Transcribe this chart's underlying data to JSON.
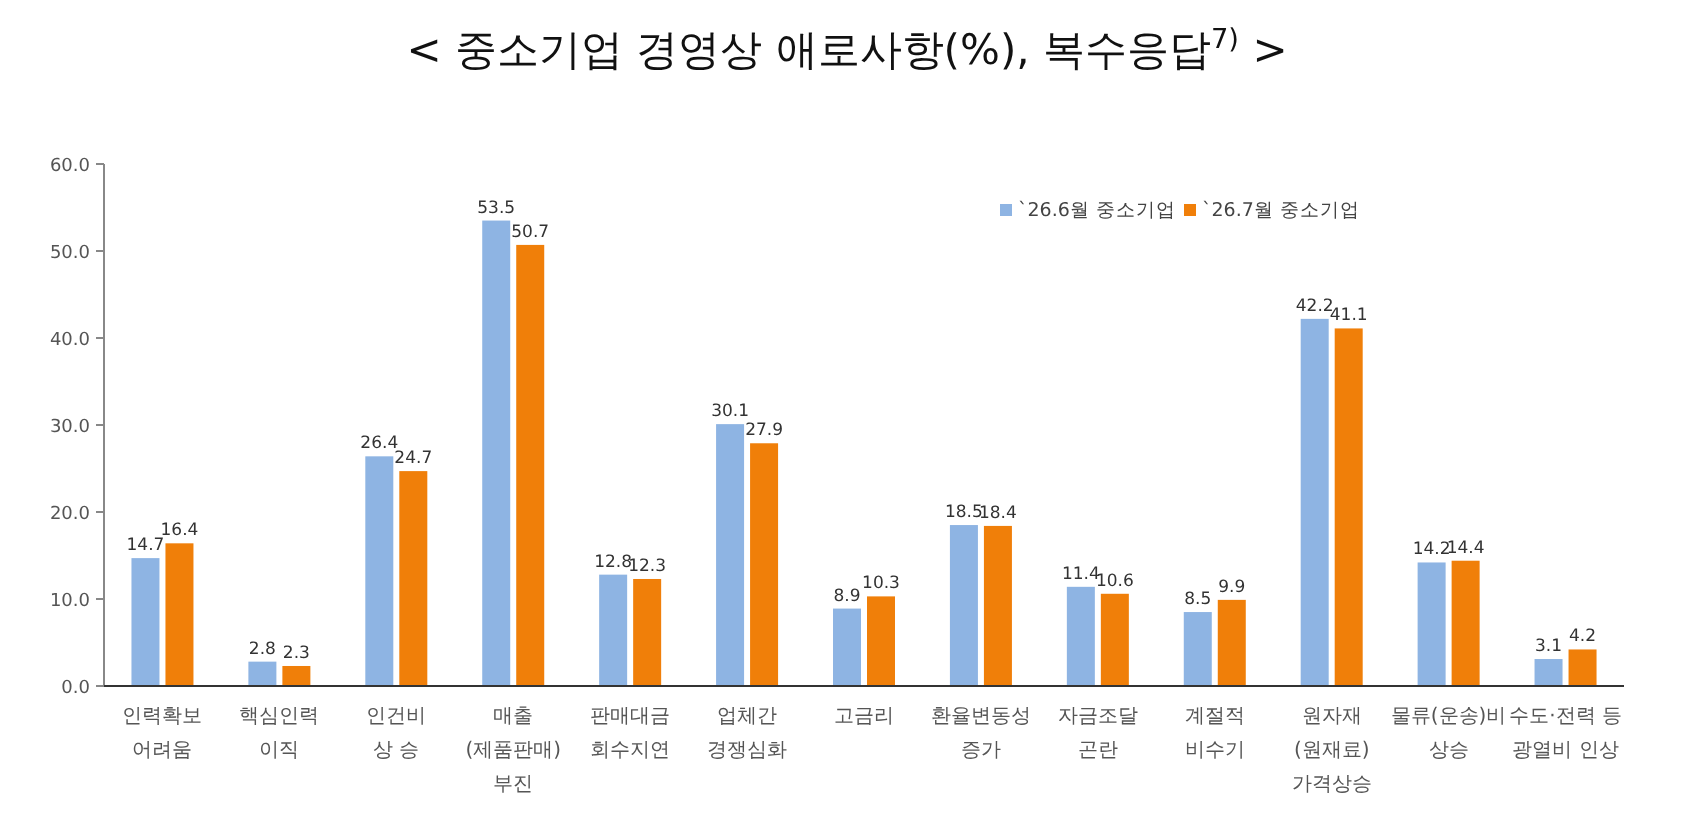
{
  "chart_data": {
    "type": "bar",
    "title": "< 중소기업 경영상 애로사항(%), 복수응답$^{7)}$ >",
    "categories": [
      "인력확보\n어려움",
      "핵심인력\n이직",
      "인건비\n상 승",
      "매출\n(제품판매)\n부진",
      "판매대금\n회수지연",
      "업체간\n경쟁심화",
      "고금리",
      "환율변동성\n증가",
      "자금조달\n곤란",
      "계절적\n비수기",
      "원자재\n(원재료)\n가격상승",
      "물류(운송)비\n상승",
      "수도·전력 등\n광열비 인상"
    ],
    "series": [
      {
        "name": "`26.6월 중소기업",
        "color": "#8eb4e3",
        "values": [
          14.7,
          2.8,
          26.4,
          53.5,
          12.8,
          30.1,
          8.9,
          18.5,
          11.4,
          8.5,
          42.2,
          14.2,
          3.1
        ]
      },
      {
        "name": "`26.7월 중소기업",
        "color": "#f07f09",
        "values": [
          16.4,
          2.3,
          24.7,
          50.7,
          12.3,
          27.9,
          10.3,
          18.4,
          10.6,
          9.9,
          41.1,
          14.4,
          4.2
        ]
      }
    ],
    "ylim": [
      0,
      60
    ],
    "yticks": [
      {
        "value": 0,
        "label": "0.0"
      },
      {
        "value": 10,
        "label": "10.0"
      },
      {
        "value": 20,
        "label": "20.0"
      },
      {
        "value": 30,
        "label": "30.0"
      },
      {
        "value": 40,
        "label": "40.0"
      },
      {
        "value": 50,
        "label": "50.0"
      },
      {
        "value": 60,
        "label": "60.0"
      }
    ],
    "data_labels": true,
    "legend": "top right"
  }
}
